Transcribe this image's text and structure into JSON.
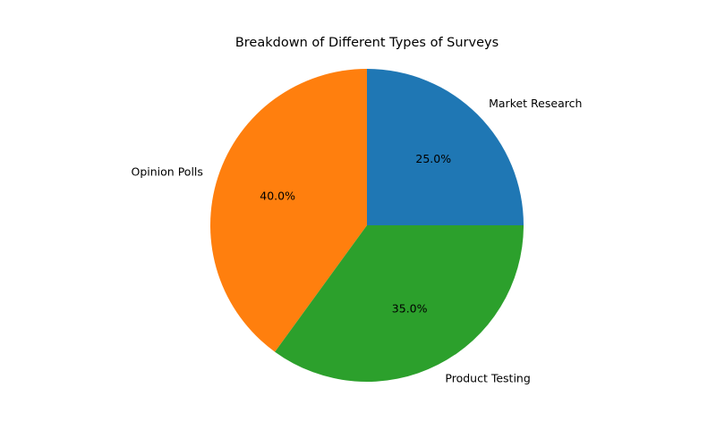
{
  "chart_data": {
    "type": "pie",
    "title": "Breakdown of Different Types of Surveys",
    "categories": [
      "Market Research",
      "Opinion Polls",
      "Product Testing"
    ],
    "values": [
      25.0,
      40.0,
      35.0
    ],
    "value_labels": [
      "25.0%",
      "40.0%",
      "35.0%"
    ],
    "colors": [
      "#1f77b4",
      "#ff7f0e",
      "#2ca02c"
    ],
    "start_angle": 0,
    "direction": "counterclockwise",
    "legend": false
  }
}
